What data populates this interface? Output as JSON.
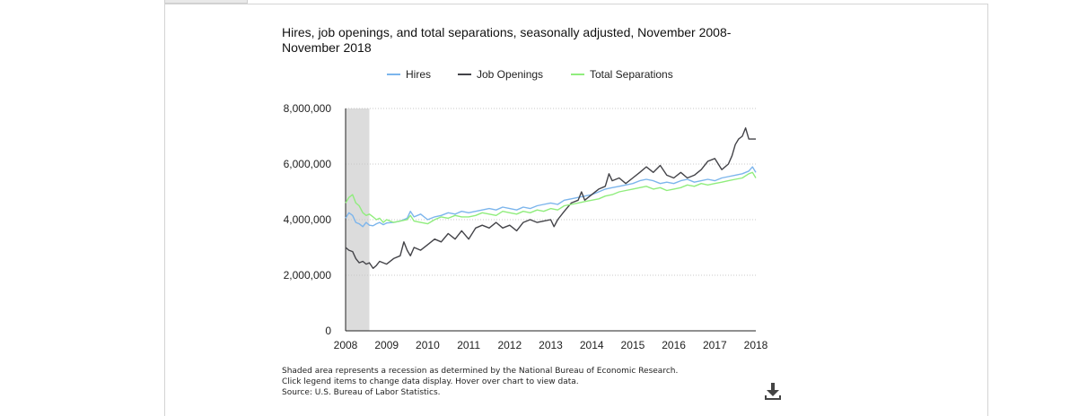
{
  "chart_data": {
    "type": "line",
    "title": "Hires, job openings, and total separations, seasonally adjusted, November 2008-November 2018",
    "xlabel": "",
    "ylabel": "",
    "ylim": [
      0,
      8000000
    ],
    "xlim": [
      2008.0,
      2018.0
    ],
    "y_ticks": [
      0,
      2000000,
      4000000,
      6000000,
      8000000
    ],
    "y_tick_labels": [
      "0",
      "2,000,000",
      "4,000,000",
      "6,000,000",
      "8,000,000"
    ],
    "x_ticks": [
      2008,
      2009,
      2010,
      2011,
      2012,
      2013,
      2014,
      2015,
      2016,
      2017,
      2018
    ],
    "x_tick_labels": [
      "2008",
      "2009",
      "2010",
      "2011",
      "2012",
      "2013",
      "2014",
      "2015",
      "2016",
      "2017",
      "2018"
    ],
    "grid": true,
    "legend_position": "top",
    "recession_band": [
      2008.0,
      2008.58
    ],
    "series": [
      {
        "name": "Hires",
        "color": "#7cb5ec",
        "points": [
          [
            2008.0,
            4050000
          ],
          [
            2008.08,
            4250000
          ],
          [
            2008.17,
            4150000
          ],
          [
            2008.25,
            3900000
          ],
          [
            2008.33,
            3850000
          ],
          [
            2008.42,
            3750000
          ],
          [
            2008.5,
            3900000
          ],
          [
            2008.58,
            3800000
          ],
          [
            2008.67,
            3780000
          ],
          [
            2008.75,
            3850000
          ],
          [
            2008.83,
            3900000
          ],
          [
            2008.92,
            3820000
          ],
          [
            2009.0,
            3880000
          ],
          [
            2009.17,
            3900000
          ],
          [
            2009.33,
            3950000
          ],
          [
            2009.5,
            4050000
          ],
          [
            2009.58,
            4300000
          ],
          [
            2009.67,
            4100000
          ],
          [
            2009.83,
            4200000
          ],
          [
            2010.0,
            4000000
          ],
          [
            2010.17,
            4100000
          ],
          [
            2010.33,
            4150000
          ],
          [
            2010.5,
            4250000
          ],
          [
            2010.67,
            4200000
          ],
          [
            2010.83,
            4300000
          ],
          [
            2011.0,
            4250000
          ],
          [
            2011.17,
            4300000
          ],
          [
            2011.33,
            4350000
          ],
          [
            2011.5,
            4400000
          ],
          [
            2011.67,
            4350000
          ],
          [
            2011.83,
            4450000
          ],
          [
            2012.0,
            4400000
          ],
          [
            2012.17,
            4350000
          ],
          [
            2012.33,
            4450000
          ],
          [
            2012.5,
            4400000
          ],
          [
            2012.67,
            4500000
          ],
          [
            2012.83,
            4550000
          ],
          [
            2013.0,
            4600000
          ],
          [
            2013.17,
            4550000
          ],
          [
            2013.33,
            4700000
          ],
          [
            2013.5,
            4750000
          ],
          [
            2013.67,
            4800000
          ],
          [
            2013.83,
            4850000
          ],
          [
            2014.0,
            4900000
          ],
          [
            2014.17,
            5000000
          ],
          [
            2014.33,
            5100000
          ],
          [
            2014.5,
            5150000
          ],
          [
            2014.67,
            5200000
          ],
          [
            2014.83,
            5250000
          ],
          [
            2015.0,
            5300000
          ],
          [
            2015.17,
            5400000
          ],
          [
            2015.33,
            5450000
          ],
          [
            2015.5,
            5400000
          ],
          [
            2015.67,
            5300000
          ],
          [
            2015.83,
            5350000
          ],
          [
            2016.0,
            5300000
          ],
          [
            2016.17,
            5400000
          ],
          [
            2016.33,
            5450000
          ],
          [
            2016.5,
            5350000
          ],
          [
            2016.67,
            5400000
          ],
          [
            2016.83,
            5450000
          ],
          [
            2017.0,
            5400000
          ],
          [
            2017.17,
            5500000
          ],
          [
            2017.33,
            5550000
          ],
          [
            2017.5,
            5600000
          ],
          [
            2017.67,
            5650000
          ],
          [
            2017.83,
            5750000
          ],
          [
            2017.92,
            5900000
          ],
          [
            2018.0,
            5700000
          ]
        ]
      },
      {
        "name": "Job Openings",
        "color": "#434348",
        "points": [
          [
            2008.0,
            3000000
          ],
          [
            2008.08,
            2900000
          ],
          [
            2008.17,
            2850000
          ],
          [
            2008.25,
            2600000
          ],
          [
            2008.33,
            2450000
          ],
          [
            2008.42,
            2500000
          ],
          [
            2008.5,
            2400000
          ],
          [
            2008.58,
            2450000
          ],
          [
            2008.67,
            2250000
          ],
          [
            2008.75,
            2350000
          ],
          [
            2008.83,
            2500000
          ],
          [
            2009.0,
            2400000
          ],
          [
            2009.17,
            2600000
          ],
          [
            2009.33,
            2700000
          ],
          [
            2009.42,
            3200000
          ],
          [
            2009.5,
            2900000
          ],
          [
            2009.58,
            2700000
          ],
          [
            2009.67,
            3000000
          ],
          [
            2009.83,
            2900000
          ],
          [
            2010.0,
            3100000
          ],
          [
            2010.17,
            3300000
          ],
          [
            2010.33,
            3200000
          ],
          [
            2010.5,
            3500000
          ],
          [
            2010.67,
            3300000
          ],
          [
            2010.83,
            3600000
          ],
          [
            2011.0,
            3300000
          ],
          [
            2011.17,
            3700000
          ],
          [
            2011.33,
            3800000
          ],
          [
            2011.5,
            3700000
          ],
          [
            2011.67,
            3900000
          ],
          [
            2011.83,
            3700000
          ],
          [
            2012.0,
            3800000
          ],
          [
            2012.17,
            3600000
          ],
          [
            2012.33,
            3900000
          ],
          [
            2012.5,
            4000000
          ],
          [
            2012.67,
            3900000
          ],
          [
            2012.83,
            3950000
          ],
          [
            2013.0,
            4000000
          ],
          [
            2013.08,
            3750000
          ],
          [
            2013.17,
            4000000
          ],
          [
            2013.33,
            4300000
          ],
          [
            2013.5,
            4600000
          ],
          [
            2013.67,
            4700000
          ],
          [
            2013.75,
            5000000
          ],
          [
            2013.83,
            4700000
          ],
          [
            2014.0,
            4900000
          ],
          [
            2014.17,
            5100000
          ],
          [
            2014.33,
            5200000
          ],
          [
            2014.42,
            5650000
          ],
          [
            2014.5,
            5400000
          ],
          [
            2014.67,
            5500000
          ],
          [
            2014.83,
            5300000
          ],
          [
            2015.0,
            5500000
          ],
          [
            2015.17,
            5700000
          ],
          [
            2015.33,
            5900000
          ],
          [
            2015.5,
            5700000
          ],
          [
            2015.67,
            5950000
          ],
          [
            2015.83,
            5600000
          ],
          [
            2016.0,
            5500000
          ],
          [
            2016.17,
            5700000
          ],
          [
            2016.33,
            5500000
          ],
          [
            2016.5,
            5600000
          ],
          [
            2016.67,
            5800000
          ],
          [
            2016.83,
            6100000
          ],
          [
            2017.0,
            6200000
          ],
          [
            2017.17,
            5800000
          ],
          [
            2017.33,
            6000000
          ],
          [
            2017.42,
            6300000
          ],
          [
            2017.5,
            6700000
          ],
          [
            2017.58,
            6900000
          ],
          [
            2017.67,
            7000000
          ],
          [
            2017.75,
            7300000
          ],
          [
            2017.83,
            6900000
          ],
          [
            2018.0,
            6900000
          ]
        ]
      },
      {
        "name": "Total Separations",
        "color": "#90ed7d",
        "points": [
          [
            2008.0,
            4600000
          ],
          [
            2008.08,
            4800000
          ],
          [
            2008.17,
            4900000
          ],
          [
            2008.25,
            4600000
          ],
          [
            2008.33,
            4500000
          ],
          [
            2008.42,
            4250000
          ],
          [
            2008.5,
            4150000
          ],
          [
            2008.58,
            4200000
          ],
          [
            2008.67,
            4100000
          ],
          [
            2008.75,
            4000000
          ],
          [
            2008.83,
            4050000
          ],
          [
            2008.92,
            3900000
          ],
          [
            2009.0,
            4000000
          ],
          [
            2009.17,
            3900000
          ],
          [
            2009.33,
            3950000
          ],
          [
            2009.5,
            4000000
          ],
          [
            2009.58,
            4150000
          ],
          [
            2009.67,
            3950000
          ],
          [
            2009.83,
            3900000
          ],
          [
            2010.0,
            3850000
          ],
          [
            2010.17,
            4000000
          ],
          [
            2010.33,
            4100000
          ],
          [
            2010.5,
            4050000
          ],
          [
            2010.67,
            4150000
          ],
          [
            2010.83,
            4100000
          ],
          [
            2011.0,
            4100000
          ],
          [
            2011.17,
            4150000
          ],
          [
            2011.33,
            4250000
          ],
          [
            2011.5,
            4200000
          ],
          [
            2011.67,
            4150000
          ],
          [
            2011.83,
            4300000
          ],
          [
            2012.0,
            4250000
          ],
          [
            2012.17,
            4200000
          ],
          [
            2012.33,
            4300000
          ],
          [
            2012.5,
            4250000
          ],
          [
            2012.67,
            4350000
          ],
          [
            2012.83,
            4300000
          ],
          [
            2013.0,
            4400000
          ],
          [
            2013.17,
            4350000
          ],
          [
            2013.33,
            4500000
          ],
          [
            2013.5,
            4550000
          ],
          [
            2013.67,
            4600000
          ],
          [
            2013.83,
            4650000
          ],
          [
            2014.0,
            4700000
          ],
          [
            2014.17,
            4750000
          ],
          [
            2014.33,
            4850000
          ],
          [
            2014.5,
            4900000
          ],
          [
            2014.67,
            5000000
          ],
          [
            2014.83,
            5050000
          ],
          [
            2015.0,
            5100000
          ],
          [
            2015.17,
            5150000
          ],
          [
            2015.33,
            5200000
          ],
          [
            2015.5,
            5100000
          ],
          [
            2015.67,
            5150000
          ],
          [
            2015.83,
            5050000
          ],
          [
            2016.0,
            5100000
          ],
          [
            2016.17,
            5150000
          ],
          [
            2016.33,
            5250000
          ],
          [
            2016.5,
            5200000
          ],
          [
            2016.67,
            5300000
          ],
          [
            2016.83,
            5250000
          ],
          [
            2017.0,
            5300000
          ],
          [
            2017.17,
            5350000
          ],
          [
            2017.33,
            5400000
          ],
          [
            2017.5,
            5450000
          ],
          [
            2017.67,
            5500000
          ],
          [
            2017.83,
            5650000
          ],
          [
            2017.92,
            5700000
          ],
          [
            2018.0,
            5500000
          ]
        ]
      }
    ]
  },
  "footnotes": {
    "line1": "Shaded area represents a recession as determined by the National Bureau of Economic Research.",
    "line2": "Click legend items to change data display. Hover over chart to view data.",
    "line3": "Source: U.S. Bureau of Labor Statistics."
  },
  "icons": {
    "download": "download-icon"
  }
}
